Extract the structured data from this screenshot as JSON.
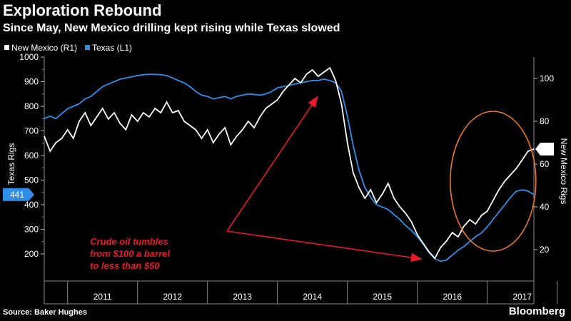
{
  "header": {
    "title": "Exploration Rebound",
    "subtitle": "Since May, New Mexico drilling kept rising while Texas slowed"
  },
  "footer": {
    "source": "Source: Baker Hughes",
    "brand": "Bloomberg"
  },
  "colors": {
    "background": "#000000",
    "new_mexico": "#ffffff",
    "texas": "#2f8fe8",
    "annotation": "#e8192c",
    "highlight_circle": "#e8772a",
    "grid": "#555555"
  },
  "chart_data": {
    "type": "line",
    "title": "Exploration Rebound",
    "subtitle": "Since May, New Mexico drilling kept rising while Texas slowed",
    "legend": {
      "placement": "top-left",
      "entries": [
        "New Mexico (R1)",
        "Texas (L1)"
      ]
    },
    "x_axis": {
      "labels": [
        "2011",
        "2012",
        "2013",
        "2014",
        "2015",
        "2016",
        "2017"
      ],
      "range": [
        "2010-09",
        "2017-09"
      ]
    },
    "y_left": {
      "label": "Texas Rigs",
      "ylim": [
        130,
        1000
      ],
      "ticks": [
        200,
        300,
        400,
        500,
        600,
        700,
        800,
        900,
        1000
      ],
      "last_value": 441
    },
    "y_right": {
      "label": "New Mexico Rigs",
      "ylim": [
        10,
        110
      ],
      "ticks": [
        20,
        40,
        60,
        80,
        100
      ],
      "last_value": 67
    },
    "grid": true,
    "annotation": {
      "lines": [
        "Crude oil tumbles",
        "from $100 a barrel",
        "to less than $50"
      ],
      "arrow_targets": [
        "2014-08",
        "2016-01"
      ]
    },
    "series": [
      {
        "name": "Texas (L1)",
        "axis": "left",
        "points": [
          [
            "2010-09",
            750
          ],
          [
            "2010-10",
            760
          ],
          [
            "2010-11",
            750
          ],
          [
            "2010-12",
            770
          ],
          [
            "2011-01",
            790
          ],
          [
            "2011-02",
            800
          ],
          [
            "2011-03",
            810
          ],
          [
            "2011-04",
            830
          ],
          [
            "2011-05",
            840
          ],
          [
            "2011-06",
            860
          ],
          [
            "2011-07",
            880
          ],
          [
            "2011-08",
            890
          ],
          [
            "2011-09",
            900
          ],
          [
            "2011-10",
            910
          ],
          [
            "2011-11",
            915
          ],
          [
            "2011-12",
            920
          ],
          [
            "2012-01",
            925
          ],
          [
            "2012-02",
            928
          ],
          [
            "2012-03",
            930
          ],
          [
            "2012-04",
            930
          ],
          [
            "2012-05",
            928
          ],
          [
            "2012-06",
            925
          ],
          [
            "2012-07",
            915
          ],
          [
            "2012-08",
            905
          ],
          [
            "2012-09",
            895
          ],
          [
            "2012-10",
            880
          ],
          [
            "2012-11",
            860
          ],
          [
            "2012-12",
            845
          ],
          [
            "2013-01",
            840
          ],
          [
            "2013-02",
            830
          ],
          [
            "2013-03",
            835
          ],
          [
            "2013-04",
            840
          ],
          [
            "2013-05",
            830
          ],
          [
            "2013-06",
            840
          ],
          [
            "2013-07",
            845
          ],
          [
            "2013-08",
            850
          ],
          [
            "2013-09",
            848
          ],
          [
            "2013-10",
            845
          ],
          [
            "2013-11",
            850
          ],
          [
            "2013-12",
            860
          ],
          [
            "2014-01",
            875
          ],
          [
            "2014-02",
            880
          ],
          [
            "2014-03",
            885
          ],
          [
            "2014-04",
            890
          ],
          [
            "2014-05",
            895
          ],
          [
            "2014-06",
            900
          ],
          [
            "2014-07",
            905
          ],
          [
            "2014-08",
            905
          ],
          [
            "2014-09",
            910
          ],
          [
            "2014-10",
            905
          ],
          [
            "2014-11",
            895
          ],
          [
            "2014-12",
            860
          ],
          [
            "2015-01",
            760
          ],
          [
            "2015-02",
            640
          ],
          [
            "2015-03",
            540
          ],
          [
            "2015-04",
            470
          ],
          [
            "2015-05",
            430
          ],
          [
            "2015-06",
            400
          ],
          [
            "2015-07",
            390
          ],
          [
            "2015-08",
            380
          ],
          [
            "2015-09",
            360
          ],
          [
            "2015-10",
            340
          ],
          [
            "2015-11",
            315
          ],
          [
            "2015-12",
            295
          ],
          [
            "2016-01",
            270
          ],
          [
            "2016-02",
            240
          ],
          [
            "2016-03",
            205
          ],
          [
            "2016-04",
            180
          ],
          [
            "2016-05",
            170
          ],
          [
            "2016-06",
            175
          ],
          [
            "2016-07",
            195
          ],
          [
            "2016-08",
            215
          ],
          [
            "2016-09",
            230
          ],
          [
            "2016-10",
            250
          ],
          [
            "2016-11",
            270
          ],
          [
            "2016-12",
            285
          ],
          [
            "2017-01",
            310
          ],
          [
            "2017-02",
            340
          ],
          [
            "2017-03",
            370
          ],
          [
            "2017-04",
            400
          ],
          [
            "2017-05",
            430
          ],
          [
            "2017-06",
            455
          ],
          [
            "2017-07",
            460
          ],
          [
            "2017-08",
            455
          ],
          [
            "2017-09",
            441
          ]
        ]
      },
      {
        "name": "New Mexico (R1)",
        "axis": "right",
        "points": [
          [
            "2010-09",
            73
          ],
          [
            "2010-10",
            66
          ],
          [
            "2010-11",
            70
          ],
          [
            "2010-12",
            72
          ],
          [
            "2011-01",
            76
          ],
          [
            "2011-02",
            72
          ],
          [
            "2011-03",
            80
          ],
          [
            "2011-04",
            84
          ],
          [
            "2011-05",
            78
          ],
          [
            "2011-06",
            82
          ],
          [
            "2011-07",
            86
          ],
          [
            "2011-08",
            81
          ],
          [
            "2011-09",
            84
          ],
          [
            "2011-10",
            79
          ],
          [
            "2011-11",
            76
          ],
          [
            "2011-12",
            83
          ],
          [
            "2012-01",
            80
          ],
          [
            "2012-02",
            84
          ],
          [
            "2012-03",
            82
          ],
          [
            "2012-04",
            86
          ],
          [
            "2012-05",
            84
          ],
          [
            "2012-06",
            89
          ],
          [
            "2012-07",
            84
          ],
          [
            "2012-08",
            85
          ],
          [
            "2012-09",
            80
          ],
          [
            "2012-10",
            78
          ],
          [
            "2012-11",
            76
          ],
          [
            "2012-12",
            72
          ],
          [
            "2013-01",
            76
          ],
          [
            "2013-02",
            70
          ],
          [
            "2013-03",
            74
          ],
          [
            "2013-04",
            77
          ],
          [
            "2013-05",
            69
          ],
          [
            "2013-06",
            73
          ],
          [
            "2013-07",
            76
          ],
          [
            "2013-08",
            80
          ],
          [
            "2013-09",
            77
          ],
          [
            "2013-10",
            82
          ],
          [
            "2013-11",
            86
          ],
          [
            "2013-12",
            88
          ],
          [
            "2014-01",
            90
          ],
          [
            "2014-02",
            94
          ],
          [
            "2014-03",
            97
          ],
          [
            "2014-04",
            100
          ],
          [
            "2014-05",
            98
          ],
          [
            "2014-06",
            102
          ],
          [
            "2014-07",
            104
          ],
          [
            "2014-08",
            101
          ],
          [
            "2014-09",
            103
          ],
          [
            "2014-10",
            105
          ],
          [
            "2014-11",
            99
          ],
          [
            "2014-12",
            88
          ],
          [
            "2015-01",
            70
          ],
          [
            "2015-02",
            56
          ],
          [
            "2015-03",
            49
          ],
          [
            "2015-04",
            44
          ],
          [
            "2015-05",
            48
          ],
          [
            "2015-06",
            42
          ],
          [
            "2015-07",
            46
          ],
          [
            "2015-08",
            51
          ],
          [
            "2015-09",
            44
          ],
          [
            "2015-10",
            40
          ],
          [
            "2015-11",
            37
          ],
          [
            "2015-12",
            33
          ],
          [
            "2016-01",
            27
          ],
          [
            "2016-02",
            23
          ],
          [
            "2016-03",
            19
          ],
          [
            "2016-04",
            16
          ],
          [
            "2016-05",
            21
          ],
          [
            "2016-06",
            24
          ],
          [
            "2016-07",
            28
          ],
          [
            "2016-08",
            26
          ],
          [
            "2016-09",
            31
          ],
          [
            "2016-10",
            34
          ],
          [
            "2016-11",
            32
          ],
          [
            "2016-12",
            36
          ],
          [
            "2017-01",
            38
          ],
          [
            "2017-02",
            43
          ],
          [
            "2017-03",
            48
          ],
          [
            "2017-04",
            52
          ],
          [
            "2017-05",
            55
          ],
          [
            "2017-06",
            58
          ],
          [
            "2017-07",
            62
          ],
          [
            "2017-08",
            66
          ],
          [
            "2017-09",
            67
          ]
        ]
      }
    ]
  }
}
